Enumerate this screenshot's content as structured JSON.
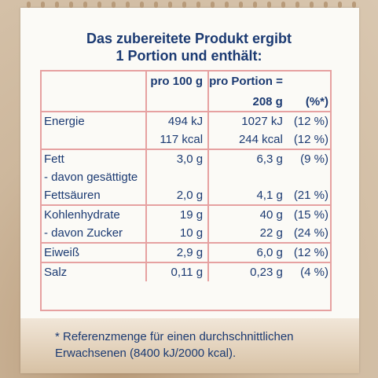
{
  "title": {
    "line1": "Das zubereitete Produkt ergibt",
    "line2": "1 Portion und enthält:"
  },
  "table": {
    "header": {
      "per100": "pro 100 g",
      "perPortion_line1": "pro Portion =",
      "perPortion_line2": "208 g",
      "percent": "(%*)"
    },
    "groups": [
      {
        "rows": [
          {
            "label": "Energie",
            "per100": "494 kJ",
            "portion": "1027 kJ",
            "pct": "(12 %)"
          },
          {
            "label": "",
            "per100": "117 kcal",
            "portion": "244 kcal",
            "pct": "(12 %)"
          }
        ]
      },
      {
        "rows": [
          {
            "label": "Fett",
            "per100": "3,0 g",
            "portion": "6,3 g",
            "pct": "(9 %)"
          },
          {
            "label": "- davon gesättigte",
            "per100": "",
            "portion": "",
            "pct": ""
          },
          {
            "label": "Fettsäuren",
            "per100": "2,0 g",
            "portion": "4,1 g",
            "pct": "(21 %)"
          }
        ]
      },
      {
        "rows": [
          {
            "label": "Kohlenhydrate",
            "per100": "19 g",
            "portion": "40 g",
            "pct": "(15 %)"
          },
          {
            "label": "- davon Zucker",
            "per100": "10 g",
            "portion": "22 g",
            "pct": "(24 %)"
          }
        ]
      },
      {
        "rows": [
          {
            "label": "Eiweiß",
            "per100": "2,9 g",
            "portion": "6,0 g",
            "pct": "(12 %)"
          }
        ]
      },
      {
        "rows": [
          {
            "label": "Salz",
            "per100": "0,11 g",
            "portion": "0,23 g",
            "pct": "(4 %)"
          }
        ]
      }
    ]
  },
  "footnote": {
    "line1": "* Referenzmenge für einen durchschnittlichen",
    "line2": "Erwachsenen (8400 kJ/2000 kcal)."
  },
  "colors": {
    "text": "#1b3a72",
    "rule": "#e6a1a1",
    "paper": "#fbfaf6",
    "background": "#c9b49a"
  }
}
